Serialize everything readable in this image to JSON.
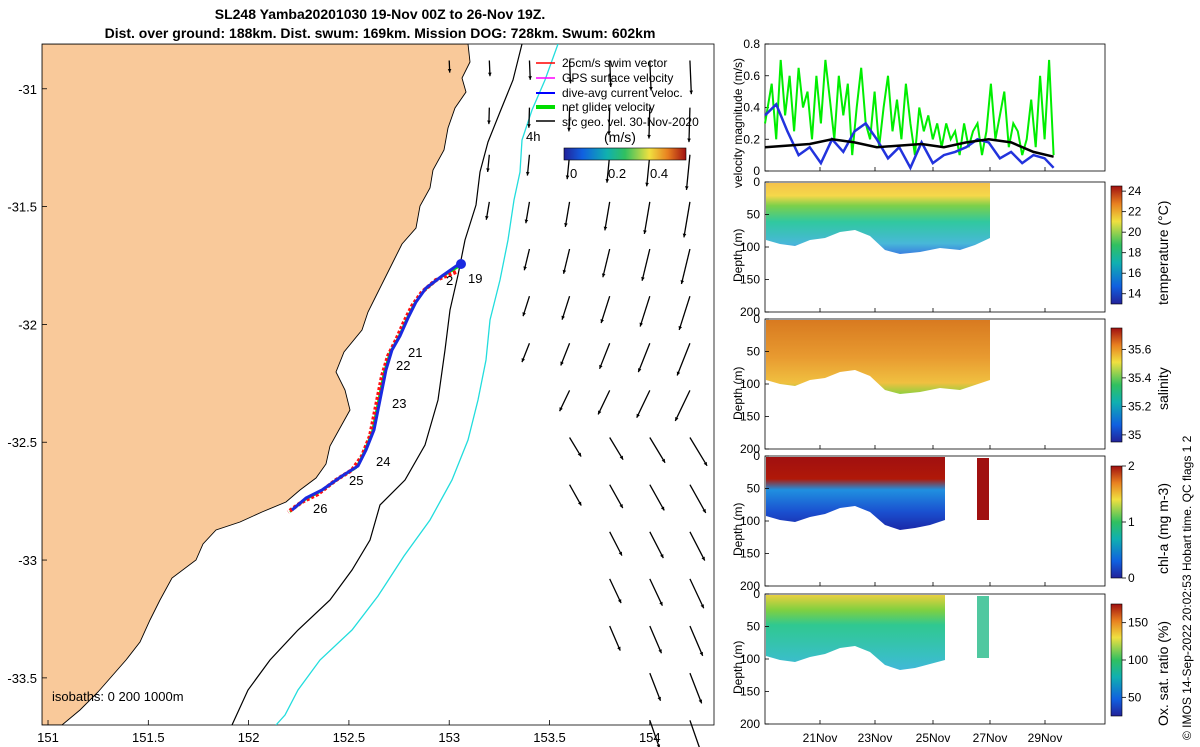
{
  "header": {
    "title_line1": "SL248 Yamba20201030 19-Nov 00Z to 26-Nov 19Z.",
    "title_line2": "Dist. over ground: 188km. Dist. swum: 169km. Mission DOG: 728km. Swum: 602km"
  },
  "map": {
    "x_ticks": [
      "151",
      "151.5",
      "152",
      "152.5",
      "153",
      "153.5",
      "154"
    ],
    "x_tick_values": [
      151,
      151.5,
      152,
      152.5,
      153,
      153.5,
      154
    ],
    "y_ticks": [
      "-31",
      "-31.5",
      "-32",
      "-32.5",
      "-33",
      "-33.5"
    ],
    "y_tick_values": [
      -31,
      -31.5,
      -32,
      -32.5,
      -33,
      -33.5
    ],
    "xlim": [
      150.97,
      154.32
    ],
    "ylim": [
      -33.7,
      -30.81
    ],
    "legend": [
      {
        "label": "25cm/s swim vector",
        "color": "#ff0000"
      },
      {
        "label": "GPS surface velocity",
        "color": "#ff00ff"
      },
      {
        "label": "dive-avg current veloc.",
        "color": "#0000ff"
      },
      {
        "label": "net glider velocity",
        "color": "#00dd00"
      },
      {
        "label": "sfc geo. vel. 30-Nov-2020",
        "color": "#000000"
      }
    ],
    "colorbar_title": "(m/s)",
    "colorbar_ticks": [
      "0",
      "0.2",
      "0.4"
    ],
    "isobath_label": "isobaths: 0  200  1000m",
    "hour_label": "4h",
    "day_labels": [
      "19",
      "21",
      "22",
      "23",
      "24",
      "25",
      "26"
    ],
    "land_color": "#f9c99a",
    "track_day_points": [
      {
        "day": "19",
        "lon": 153.05,
        "lat": -31.77
      },
      {
        "day": "21",
        "lon": 152.78,
        "lat": -32.13
      },
      {
        "day": "22",
        "lon": 152.74,
        "lat": -32.19
      },
      {
        "day": "23",
        "lon": 152.72,
        "lat": -32.36
      },
      {
        "day": "24",
        "lon": 152.62,
        "lat": -32.58
      },
      {
        "day": "25",
        "lon": 152.5,
        "lat": -32.68
      },
      {
        "day": "26",
        "lon": 152.31,
        "lat": -32.79
      }
    ]
  },
  "chart_data": [
    {
      "type": "line",
      "title": "velocity magnitude",
      "ylabel": "velocity magnitude (m/s)",
      "ylim": [
        0,
        0.8
      ],
      "y_ticks": [
        "0",
        "0.2",
        "0.4",
        "0.6",
        "0.8"
      ],
      "series": [
        {
          "name": "net glider velocity",
          "color": "#00ee00",
          "x": [
            0,
            0.3,
            0.5,
            0.7,
            0.9,
            1.1,
            1.3,
            1.5,
            1.7,
            1.9,
            2.1,
            2.3,
            2.5,
            2.7,
            2.9,
            3.1,
            3.3,
            3.5,
            3.7,
            3.9,
            4.1,
            4.3,
            4.5,
            4.7,
            4.9,
            5.1,
            5.3,
            5.5,
            5.7,
            5.9,
            6.1,
            6.3,
            6.5,
            6.7,
            6.9,
            7.1,
            7.3,
            7.5,
            7.7,
            7.9,
            8.1,
            8.3,
            8.5,
            8.7,
            8.9,
            9.1,
            9.3,
            9.5,
            9.7,
            9.9,
            10.1,
            10.3,
            10.5,
            10.7,
            10.9,
            11.1,
            11.3,
            11.5,
            11.7,
            11.9,
            12.1,
            12.3,
            12.5,
            12.7,
            12.9
          ],
          "values": [
            0.3,
            0.55,
            0.2,
            0.7,
            0.35,
            0.6,
            0.25,
            0.65,
            0.4,
            0.5,
            0.2,
            0.6,
            0.3,
            0.7,
            0.45,
            0.2,
            0.6,
            0.35,
            0.55,
            0.1,
            0.4,
            0.65,
            0.3,
            0.2,
            0.5,
            0.15,
            0.4,
            0.6,
            0.25,
            0.45,
            0.2,
            0.55,
            0.3,
            0.1,
            0.4,
            0.25,
            0.35,
            0.2,
            0.3,
            0.15,
            0.3,
            0.2,
            0.25,
            0.1,
            0.3,
            0.15,
            0.25,
            0.3,
            0.1,
            0.25,
            0.55,
            0.2,
            0.35,
            0.5,
            0.15,
            0.3,
            0.25,
            0.1,
            0.2,
            0.45,
            0.15,
            0.6,
            0.2,
            0.7,
            0.1
          ]
        },
        {
          "name": "dive-avg current veloc.",
          "color": "#2233dd",
          "x": [
            0,
            0.5,
            1,
            1.5,
            2,
            2.5,
            3,
            3.5,
            4,
            4.5,
            5,
            5.5,
            6,
            6.5,
            7,
            7.5,
            8,
            8.5,
            9,
            9.5,
            10,
            10.5,
            11,
            11.5,
            12,
            12.5,
            12.9
          ],
          "values": [
            0.35,
            0.42,
            0.25,
            0.1,
            0.15,
            0.05,
            0.2,
            0.12,
            0.25,
            0.3,
            0.2,
            0.08,
            0.15,
            0.02,
            0.18,
            0.05,
            0.1,
            0.12,
            0.15,
            0.2,
            0.18,
            0.08,
            0.12,
            0.05,
            0.1,
            0.08,
            0.02
          ]
        },
        {
          "name": "sfc geo. vel.",
          "color": "#000000",
          "x": [
            0,
            1,
            2,
            3,
            4,
            5,
            6,
            7,
            8,
            9,
            10,
            11,
            12,
            12.9
          ],
          "values": [
            0.15,
            0.16,
            0.17,
            0.2,
            0.18,
            0.15,
            0.16,
            0.17,
            0.15,
            0.18,
            0.2,
            0.18,
            0.12,
            0.09
          ]
        }
      ]
    },
    {
      "type": "heatmap",
      "title": "temperature",
      "ylabel": "Depth (m)",
      "cbar_label": "temperature (°C)",
      "cbar_ticks": [
        "14",
        "16",
        "18",
        "20",
        "22",
        "24"
      ],
      "cbar_range": [
        13,
        24.5
      ],
      "ylim": [
        0,
        200
      ],
      "y_ticks": [
        "0",
        "50",
        "100",
        "150",
        "200"
      ]
    },
    {
      "type": "heatmap",
      "title": "salinity",
      "ylabel": "Depth (m)",
      "cbar_label": "salinity",
      "cbar_ticks": [
        "35",
        "35.2",
        "35.4",
        "35.6"
      ],
      "cbar_range": [
        34.95,
        35.75
      ],
      "ylim": [
        0,
        200
      ],
      "y_ticks": [
        "0",
        "50",
        "100",
        "150",
        "200"
      ]
    },
    {
      "type": "heatmap",
      "title": "chl-a",
      "ylabel": "Depth (m)",
      "cbar_label": "chl-a (mg m-3)",
      "cbar_ticks": [
        "0",
        "1",
        "2"
      ],
      "cbar_range": [
        0,
        2
      ],
      "ylim": [
        0,
        200
      ],
      "y_ticks": [
        "0",
        "50",
        "100",
        "150",
        "200"
      ]
    },
    {
      "type": "heatmap",
      "title": "oxygen saturation",
      "ylabel": "Depth (m)",
      "cbar_label": "Ox. sat. ratio (%)",
      "cbar_ticks": [
        "50",
        "100",
        "150"
      ],
      "cbar_range": [
        25,
        175
      ],
      "ylim": [
        0,
        200
      ],
      "y_ticks": [
        "0",
        "50",
        "100",
        "150",
        "200"
      ],
      "x_ticks": [
        "21Nov",
        "23Nov",
        "25Nov",
        "27Nov",
        "29Nov"
      ]
    }
  ],
  "footer": {
    "side_note": "© IMOS 14-Sep-2022 20:02:53 Hobart time. QC flags 1  2"
  }
}
